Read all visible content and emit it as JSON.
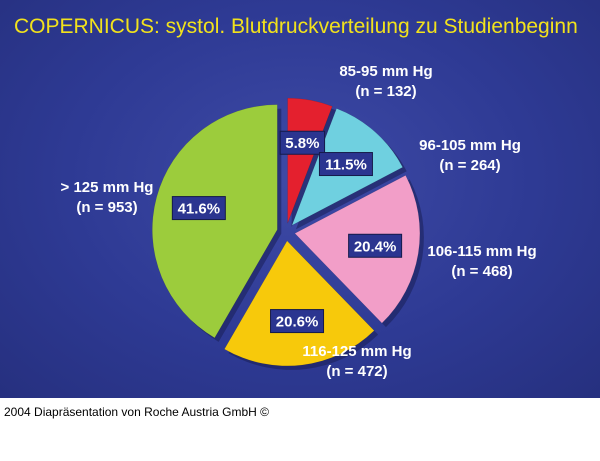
{
  "title": "COPERNICUS: systol. Blutdruckverteilung zu Studienbeginn",
  "footer": "2004 Diapräsentation von Roche Austria GmbH ©",
  "colors": {
    "background": "#2e3a94",
    "title": "#f2e21c",
    "label": "#ffffff",
    "percent_box": "#2b3590",
    "pie_shadow": "#1a1f55"
  },
  "chart_data": {
    "type": "pie",
    "title": "COPERNICUS: systol. Blutdruckverteilung zu Studienbeginn",
    "legend": "none",
    "slices": [
      {
        "category": "85-95 mm Hg",
        "count_label": "(n = 132)",
        "value": 5.8,
        "percent_label": "5.8%",
        "color": "#e4202e",
        "exploded": true
      },
      {
        "category": "96-105 mm Hg",
        "count_label": "(n = 264)",
        "value": 11.5,
        "percent_label": "11.5%",
        "color": "#6fd0e0",
        "exploded": true
      },
      {
        "category": "106-115 mm Hg",
        "count_label": "(n = 468)",
        "value": 20.4,
        "percent_label": "20.4%",
        "color": "#f29ec8",
        "exploded": true
      },
      {
        "category": "116-125 mm Hg",
        "count_label": "(n = 472)",
        "value": 20.6,
        "percent_label": "20.6%",
        "color": "#f7c90b",
        "exploded": true
      },
      {
        "category": "> 125 mm Hg",
        "count_label": "(n = 953)",
        "value": 41.6,
        "percent_label": "41.6%",
        "color": "#9ccc3c",
        "exploded": true
      }
    ]
  }
}
